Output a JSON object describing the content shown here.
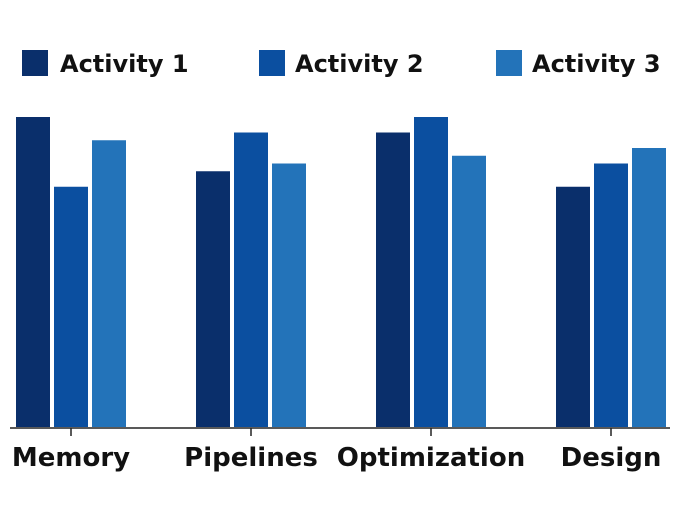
{
  "chart_data": {
    "type": "bar",
    "title": "",
    "xlabel": "",
    "ylabel": "",
    "categories": [
      "Memory",
      "Pipelines",
      "Optimization",
      "Design"
    ],
    "series": [
      {
        "name": "Activity 1",
        "color": "#0a2f6b",
        "values": [
          80,
          66,
          76,
          62
        ]
      },
      {
        "name": "Activity 2",
        "color": "#0b4fa0",
        "values": [
          62,
          76,
          80,
          68
        ]
      },
      {
        "name": "Activity 3",
        "color": "#2373b9",
        "values": [
          74,
          68,
          70,
          72
        ]
      }
    ],
    "ylim": [
      0,
      80
    ],
    "grid": false,
    "legend_position": "top"
  }
}
